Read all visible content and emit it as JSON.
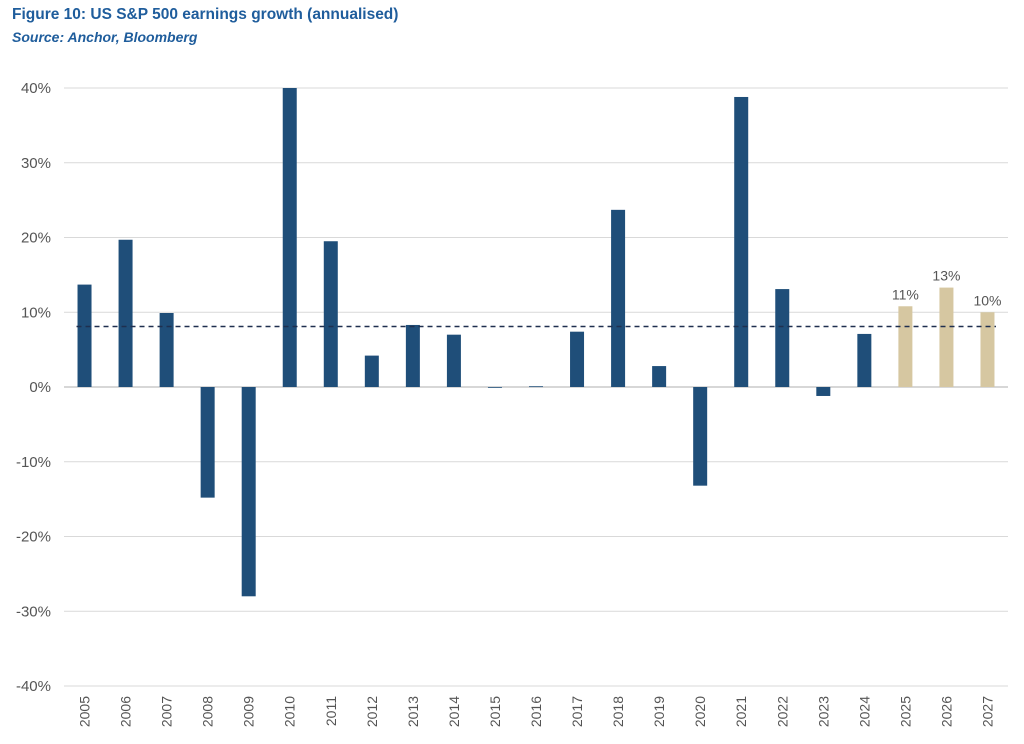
{
  "header": {
    "title": "Figure 10: US S&P 500 earnings growth (annualised)",
    "source": "Source: Anchor, Bloomberg"
  },
  "chart_data": {
    "type": "bar",
    "title": "Figure 10: US S&P 500 earnings growth (annualised)",
    "xlabel": "",
    "ylabel": "",
    "ylim": [
      -40,
      40
    ],
    "yticks": [
      40,
      30,
      20,
      10,
      0,
      -10,
      -20,
      -30,
      -40
    ],
    "ytick_labels": [
      "40%",
      "30%",
      "20%",
      "10%",
      "0%",
      "-10%",
      "-20%",
      "-30%",
      "-40%"
    ],
    "grid": true,
    "categories": [
      "2005",
      "2006",
      "2007",
      "2008",
      "2009",
      "2010",
      "2011",
      "2012",
      "2013",
      "2014",
      "2015",
      "2016",
      "2017",
      "2018",
      "2019",
      "2020",
      "2021",
      "2022",
      "2023",
      "2024",
      "2025",
      "2026",
      "2027"
    ],
    "values": [
      13.7,
      19.7,
      9.9,
      -14.8,
      -28.0,
      40.0,
      19.5,
      4.2,
      8.3,
      7.0,
      0.0,
      0.1,
      7.4,
      23.7,
      2.8,
      -13.2,
      38.8,
      13.1,
      -1.2,
      7.1,
      10.8,
      13.3,
      10.0
    ],
    "projected_from": "2025",
    "average_line": 8.1,
    "data_labels": {
      "2025": "11%",
      "2026": "13%",
      "2027": "10%"
    },
    "colors": {
      "actual": "#1f4e79",
      "projected": "#d6c7a1",
      "grid": "#d9d9d9",
      "average_line": "#1f2f4f"
    }
  }
}
